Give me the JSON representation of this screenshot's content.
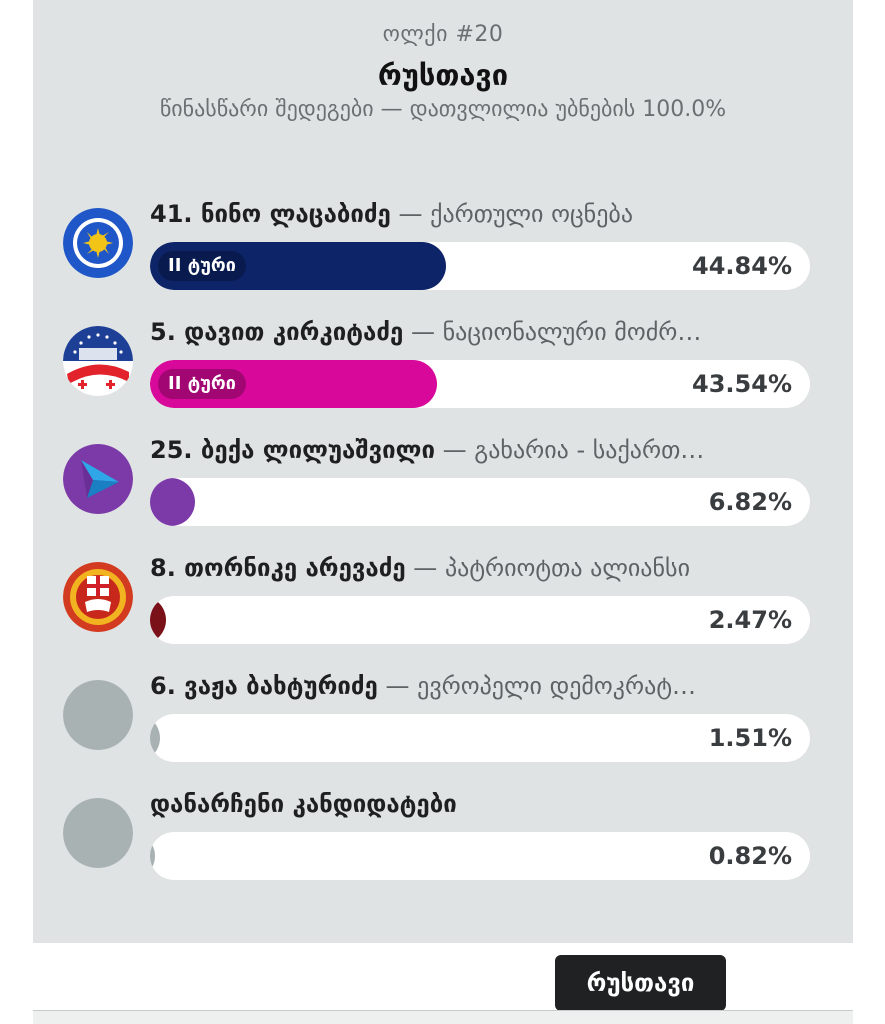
{
  "header": {
    "district": "ოლქი #20",
    "city": "რუსთავი",
    "subtitle": "წინასწარი შედეგები — დათვლილია უბნების 100.0%"
  },
  "candidates": [
    {
      "name": "41. ნინო ლაცაბიძე",
      "party": "ქართული ოცნება",
      "percent_label": "44.84%",
      "share": 0.4484,
      "runoff_label": "II ტური",
      "color": "#0d2468",
      "logo_icon": "georgian-dream-logo-icon"
    },
    {
      "name": "5. დავით კირკიტაძე",
      "party": "ნაციონალური მოძრ…",
      "percent_label": "43.54%",
      "share": 0.4354,
      "runoff_label": "II ტური",
      "color": "#d8099a",
      "logo_icon": "national-movement-logo-icon"
    },
    {
      "name": "25. ბექა ლილუაშვილი",
      "party": "გახარია - საქართ…",
      "percent_label": "6.82%",
      "share": 0.0682,
      "runoff_label": "",
      "color": "#7b3aa8",
      "logo_icon": "gakharia-party-logo-icon"
    },
    {
      "name": "8. თორნიკე არევაძე",
      "party": "პატრიოტთა ალიანსი",
      "percent_label": "2.47%",
      "share": 0.0247,
      "runoff_label": "",
      "color": "#7a1018",
      "logo_icon": "patriots-alliance-logo-icon"
    },
    {
      "name": "6. ვაჟა ბახტურიძე",
      "party": "ევროპელი დემოკრატ…",
      "percent_label": "1.51%",
      "share": 0.0151,
      "runoff_label": "",
      "color": "#a9b2b3",
      "logo_icon": "placeholder-logo-icon"
    },
    {
      "name": "დანარჩენი კანდიდატები",
      "party": "",
      "percent_label": "0.82%",
      "share": 0.0082,
      "runoff_label": "",
      "color": "#a9b2b3",
      "logo_icon": "placeholder-logo-icon"
    }
  ],
  "footer": {
    "button_label": "რუსთავი"
  }
}
